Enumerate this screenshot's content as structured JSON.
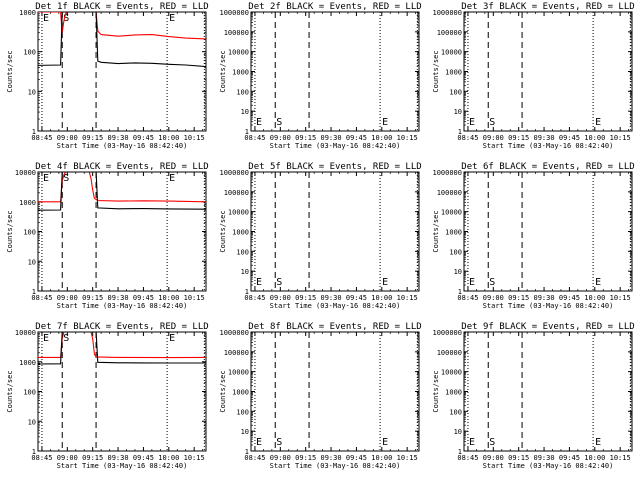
{
  "chart_data": [
    {
      "panel": "1f",
      "type": "line",
      "title": "Det 1f BLACK = Events, RED = LLD",
      "ylabel": "Counts/sec",
      "xlabel": "Start Time (03-May-16 08:42:40)",
      "yscale": "log",
      "ylim": [
        1,
        1000
      ],
      "yticks": [
        "1",
        "10",
        "100",
        "1000"
      ],
      "xticks": [
        "08:45",
        "09:00",
        "09:15",
        "09:30",
        "09:45",
        "10:00",
        "10:15"
      ],
      "grid": false,
      "has_data": true,
      "markers": [
        {
          "label": "E",
          "time": "08:45"
        },
        {
          "label": "S",
          "time": "08:57"
        }
      ],
      "late_label": "E",
      "series": [
        {
          "color": "#ff0000",
          "points": [
            [
              "08:42",
              1000
            ],
            [
              "08:56",
              1000
            ],
            [
              "08:57",
              300
            ],
            [
              "08:58",
              600
            ],
            [
              "08:59",
              900
            ],
            [
              "09:00",
              1000
            ],
            [
              "09:17",
              1000
            ],
            [
              "09:18",
              330
            ],
            [
              "09:20",
              270
            ],
            [
              "09:30",
              245
            ],
            [
              "09:40",
              265
            ],
            [
              "09:50",
              270
            ],
            [
              "10:00",
              240
            ],
            [
              "10:10",
              220
            ],
            [
              "10:22",
              210
            ]
          ]
        },
        {
          "color": "#000000",
          "points": [
            [
              "08:42",
              45
            ],
            [
              "08:56",
              46
            ],
            [
              "08:57",
              1000
            ],
            [
              "09:17",
              1000
            ],
            [
              "09:18",
              58
            ],
            [
              "09:20",
              54
            ],
            [
              "09:30",
              50
            ],
            [
              "09:40",
              52
            ],
            [
              "09:50",
              51
            ],
            [
              "10:00",
              48
            ],
            [
              "10:10",
              46
            ],
            [
              "10:22",
              42
            ]
          ]
        }
      ]
    },
    {
      "panel": "2f",
      "type": "line",
      "title": "Det 2f BLACK = Events, RED = LLD",
      "ylabel": "Counts/sec",
      "xlabel": "Start Time (03-May-16 08:42:40)",
      "yscale": "log",
      "ylim": [
        1,
        1000000
      ],
      "yticks": [
        "1",
        "10",
        "100",
        "1000",
        "10000",
        "100000",
        "1000000"
      ],
      "xticks": [
        "08:45",
        "09:00",
        "09:15",
        "09:30",
        "09:45",
        "10:00",
        "10:15"
      ],
      "grid": false,
      "has_data": false,
      "markers": [
        {
          "label": "E",
          "time": "08:45"
        },
        {
          "label": "S",
          "time": "08:57"
        }
      ],
      "late_label": "E",
      "series": []
    },
    {
      "panel": "3f",
      "type": "line",
      "title": "Det 3f BLACK = Events, RED = LLD",
      "ylabel": "Counts/sec",
      "xlabel": "Start Time (03-May-16 08:42:40)",
      "yscale": "log",
      "ylim": [
        1,
        1000000
      ],
      "yticks": [
        "1",
        "10",
        "100",
        "1000",
        "10000",
        "100000",
        "1000000"
      ],
      "xticks": [
        "08:45",
        "09:00",
        "09:15",
        "09:30",
        "09:45",
        "10:00",
        "10:15"
      ],
      "grid": false,
      "has_data": false,
      "markers": [
        {
          "label": "E",
          "time": "08:45"
        },
        {
          "label": "S",
          "time": "08:57"
        }
      ],
      "late_label": "E",
      "series": []
    },
    {
      "panel": "4f",
      "type": "line",
      "title": "Det 4f BLACK = Events, RED = LLD",
      "ylabel": "Counts/sec",
      "xlabel": "Start Time (03-May-16 08:42:40)",
      "yscale": "log",
      "ylim": [
        1,
        10000
      ],
      "yticks": [
        "1",
        "10",
        "100",
        "1000",
        "10000"
      ],
      "xticks": [
        "08:45",
        "09:00",
        "09:15",
        "09:30",
        "09:45",
        "10:00",
        "10:15"
      ],
      "grid": false,
      "has_data": true,
      "markers": [
        {
          "label": "E",
          "time": "08:45"
        },
        {
          "label": "S",
          "time": "08:57"
        }
      ],
      "late_label": "E",
      "series": [
        {
          "color": "#ff0000",
          "points": [
            [
              "08:42",
              1000
            ],
            [
              "08:56",
              1000
            ],
            [
              "08:57",
              5000
            ],
            [
              "08:58",
              8000
            ],
            [
              "08:59",
              10000
            ],
            [
              "09:13",
              10000
            ],
            [
              "09:14",
              6000
            ],
            [
              "09:15",
              2500
            ],
            [
              "09:16",
              1300
            ],
            [
              "09:18",
              1100
            ],
            [
              "09:30",
              1050
            ],
            [
              "09:45",
              1080
            ],
            [
              "10:00",
              1050
            ],
            [
              "10:22",
              1000
            ]
          ]
        },
        {
          "color": "#000000",
          "points": [
            [
              "08:42",
              520
            ],
            [
              "08:56",
              530
            ],
            [
              "08:57",
              10000
            ],
            [
              "09:17",
              10000
            ],
            [
              "09:18",
              620
            ],
            [
              "09:30",
              580
            ],
            [
              "09:45",
              590
            ],
            [
              "10:00",
              575
            ],
            [
              "10:22",
              560
            ]
          ]
        }
      ]
    },
    {
      "panel": "5f",
      "type": "line",
      "title": "Det 5f BLACK = Events, RED = LLD",
      "ylabel": "Counts/sec",
      "xlabel": "Start Time (03-May-16 08:42:40)",
      "yscale": "log",
      "ylim": [
        1,
        1000000
      ],
      "yticks": [
        "1",
        "10",
        "100",
        "1000",
        "10000",
        "100000",
        "1000000"
      ],
      "xticks": [
        "08:45",
        "09:00",
        "09:15",
        "09:30",
        "09:45",
        "10:00",
        "10:15"
      ],
      "grid": false,
      "has_data": false,
      "markers": [
        {
          "label": "E",
          "time": "08:45"
        },
        {
          "label": "S",
          "time": "08:57"
        }
      ],
      "late_label": "E",
      "series": []
    },
    {
      "panel": "6f",
      "type": "line",
      "title": "Det 6f BLACK = Events, RED = LLD",
      "ylabel": "Counts/sec",
      "xlabel": "Start Time (03-May-16 08:42:40)",
      "yscale": "log",
      "ylim": [
        1,
        1000000
      ],
      "yticks": [
        "1",
        "10",
        "100",
        "1000",
        "10000",
        "100000",
        "1000000"
      ],
      "xticks": [
        "08:45",
        "09:00",
        "09:15",
        "09:30",
        "09:45",
        "10:00",
        "10:15"
      ],
      "grid": false,
      "has_data": false,
      "markers": [
        {
          "label": "E",
          "time": "08:45"
        },
        {
          "label": "S",
          "time": "08:57"
        }
      ],
      "late_label": "E",
      "series": []
    },
    {
      "panel": "7f",
      "type": "line",
      "title": "Det 7f BLACK = Events, RED = LLD",
      "ylabel": "Counts/sec",
      "xlabel": "Start Time (03-May-16 08:42:40)",
      "yscale": "log",
      "ylim": [
        1,
        10000
      ],
      "yticks": [
        "1",
        "10",
        "100",
        "1000",
        "10000"
      ],
      "xticks": [
        "08:45",
        "09:00",
        "09:15",
        "09:30",
        "09:45",
        "10:00",
        "10:15"
      ],
      "grid": false,
      "has_data": true,
      "markers": [
        {
          "label": "E",
          "time": "08:45"
        },
        {
          "label": "S",
          "time": "08:57"
        }
      ],
      "late_label": "E",
      "series": [
        {
          "color": "#ff0000",
          "points": [
            [
              "08:42",
              1400
            ],
            [
              "08:56",
              1400
            ],
            [
              "08:57",
              6000
            ],
            [
              "08:58",
              10000
            ],
            [
              "09:14",
              10000
            ],
            [
              "09:15",
              6000
            ],
            [
              "09:16",
              1800
            ],
            [
              "09:17",
              1450
            ],
            [
              "09:30",
              1400
            ],
            [
              "10:00",
              1380
            ],
            [
              "10:22",
              1400
            ]
          ]
        },
        {
          "color": "#000000",
          "points": [
            [
              "08:42",
              840
            ],
            [
              "08:56",
              850
            ],
            [
              "08:57",
              10000
            ],
            [
              "09:17",
              10000
            ],
            [
              "09:18",
              960
            ],
            [
              "09:30",
              920
            ],
            [
              "09:45",
              915
            ],
            [
              "10:00",
              910
            ],
            [
              "10:22",
              905
            ]
          ]
        }
      ]
    },
    {
      "panel": "8f",
      "type": "line",
      "title": "Det 8f BLACK = Events, RED = LLD",
      "ylabel": "Counts/sec",
      "xlabel": "Start Time (03-May-16 08:42:40)",
      "yscale": "log",
      "ylim": [
        1,
        1000000
      ],
      "yticks": [
        "1",
        "10",
        "100",
        "1000",
        "10000",
        "100000",
        "1000000"
      ],
      "xticks": [
        "08:45",
        "09:00",
        "09:15",
        "09:30",
        "09:45",
        "10:00",
        "10:15"
      ],
      "grid": false,
      "has_data": false,
      "markers": [
        {
          "label": "E",
          "time": "08:45"
        },
        {
          "label": "S",
          "time": "08:57"
        }
      ],
      "late_label": "E",
      "series": []
    },
    {
      "panel": "9f",
      "type": "line",
      "title": "Det 9f BLACK = Events, RED = LLD",
      "ylabel": "Counts/sec",
      "xlabel": "Start Time (03-May-16 08:42:40)",
      "yscale": "log",
      "ylim": [
        1,
        1000000
      ],
      "yticks": [
        "1",
        "10",
        "100",
        "1000",
        "10000",
        "100000",
        "1000000"
      ],
      "xticks": [
        "08:45",
        "09:00",
        "09:15",
        "09:30",
        "09:45",
        "10:00",
        "10:15"
      ],
      "grid": false,
      "has_data": false,
      "markers": [
        {
          "label": "E",
          "time": "08:45"
        },
        {
          "label": "S",
          "time": "08:57"
        }
      ],
      "late_label": "E",
      "series": []
    }
  ]
}
